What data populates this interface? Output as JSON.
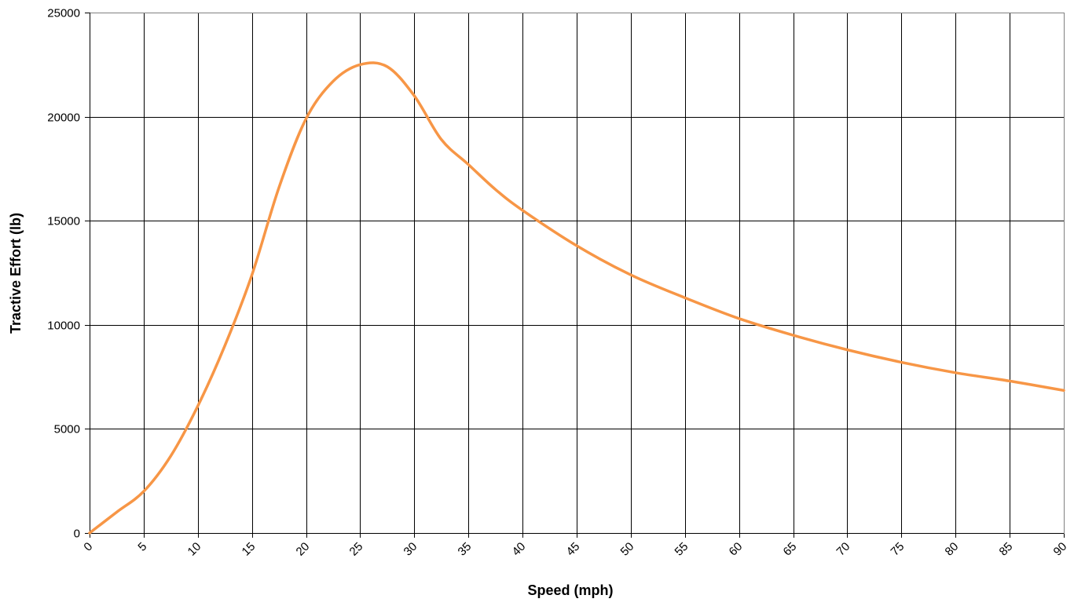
{
  "chart_data": {
    "type": "line",
    "title": "",
    "xlabel": "Speed (mph)",
    "ylabel": "Tractive Effort (lb)",
    "xlim": [
      0,
      90
    ],
    "ylim": [
      0,
      25000
    ],
    "x_ticks": [
      "0",
      "5",
      "10",
      "15",
      "20",
      "25",
      "30",
      "35",
      "40",
      "45",
      "50",
      "55",
      "60",
      "65",
      "70",
      "75",
      "80",
      "85",
      "90"
    ],
    "y_ticks": [
      "0",
      "5000",
      "10000",
      "15000",
      "20000",
      "25000"
    ],
    "grid": true,
    "legend": "none",
    "series": [
      {
        "color": "#f79646",
        "x": [
          0,
          2.5,
          5,
          7.5,
          10,
          12.5,
          15,
          17.5,
          20,
          22.5,
          25,
          27.5,
          30,
          32.5,
          35,
          37.5,
          40,
          45,
          50,
          55,
          60,
          65,
          70,
          75,
          80,
          85,
          90
        ],
        "y": [
          0,
          1000,
          2000,
          3700,
          6100,
          9000,
          12400,
          16600,
          19900,
          21700,
          22500,
          22400,
          21000,
          18900,
          17700,
          16500,
          15500,
          13800,
          12400,
          11300,
          10300,
          9500,
          8800,
          8200,
          7700,
          7300,
          6850
        ]
      }
    ]
  }
}
